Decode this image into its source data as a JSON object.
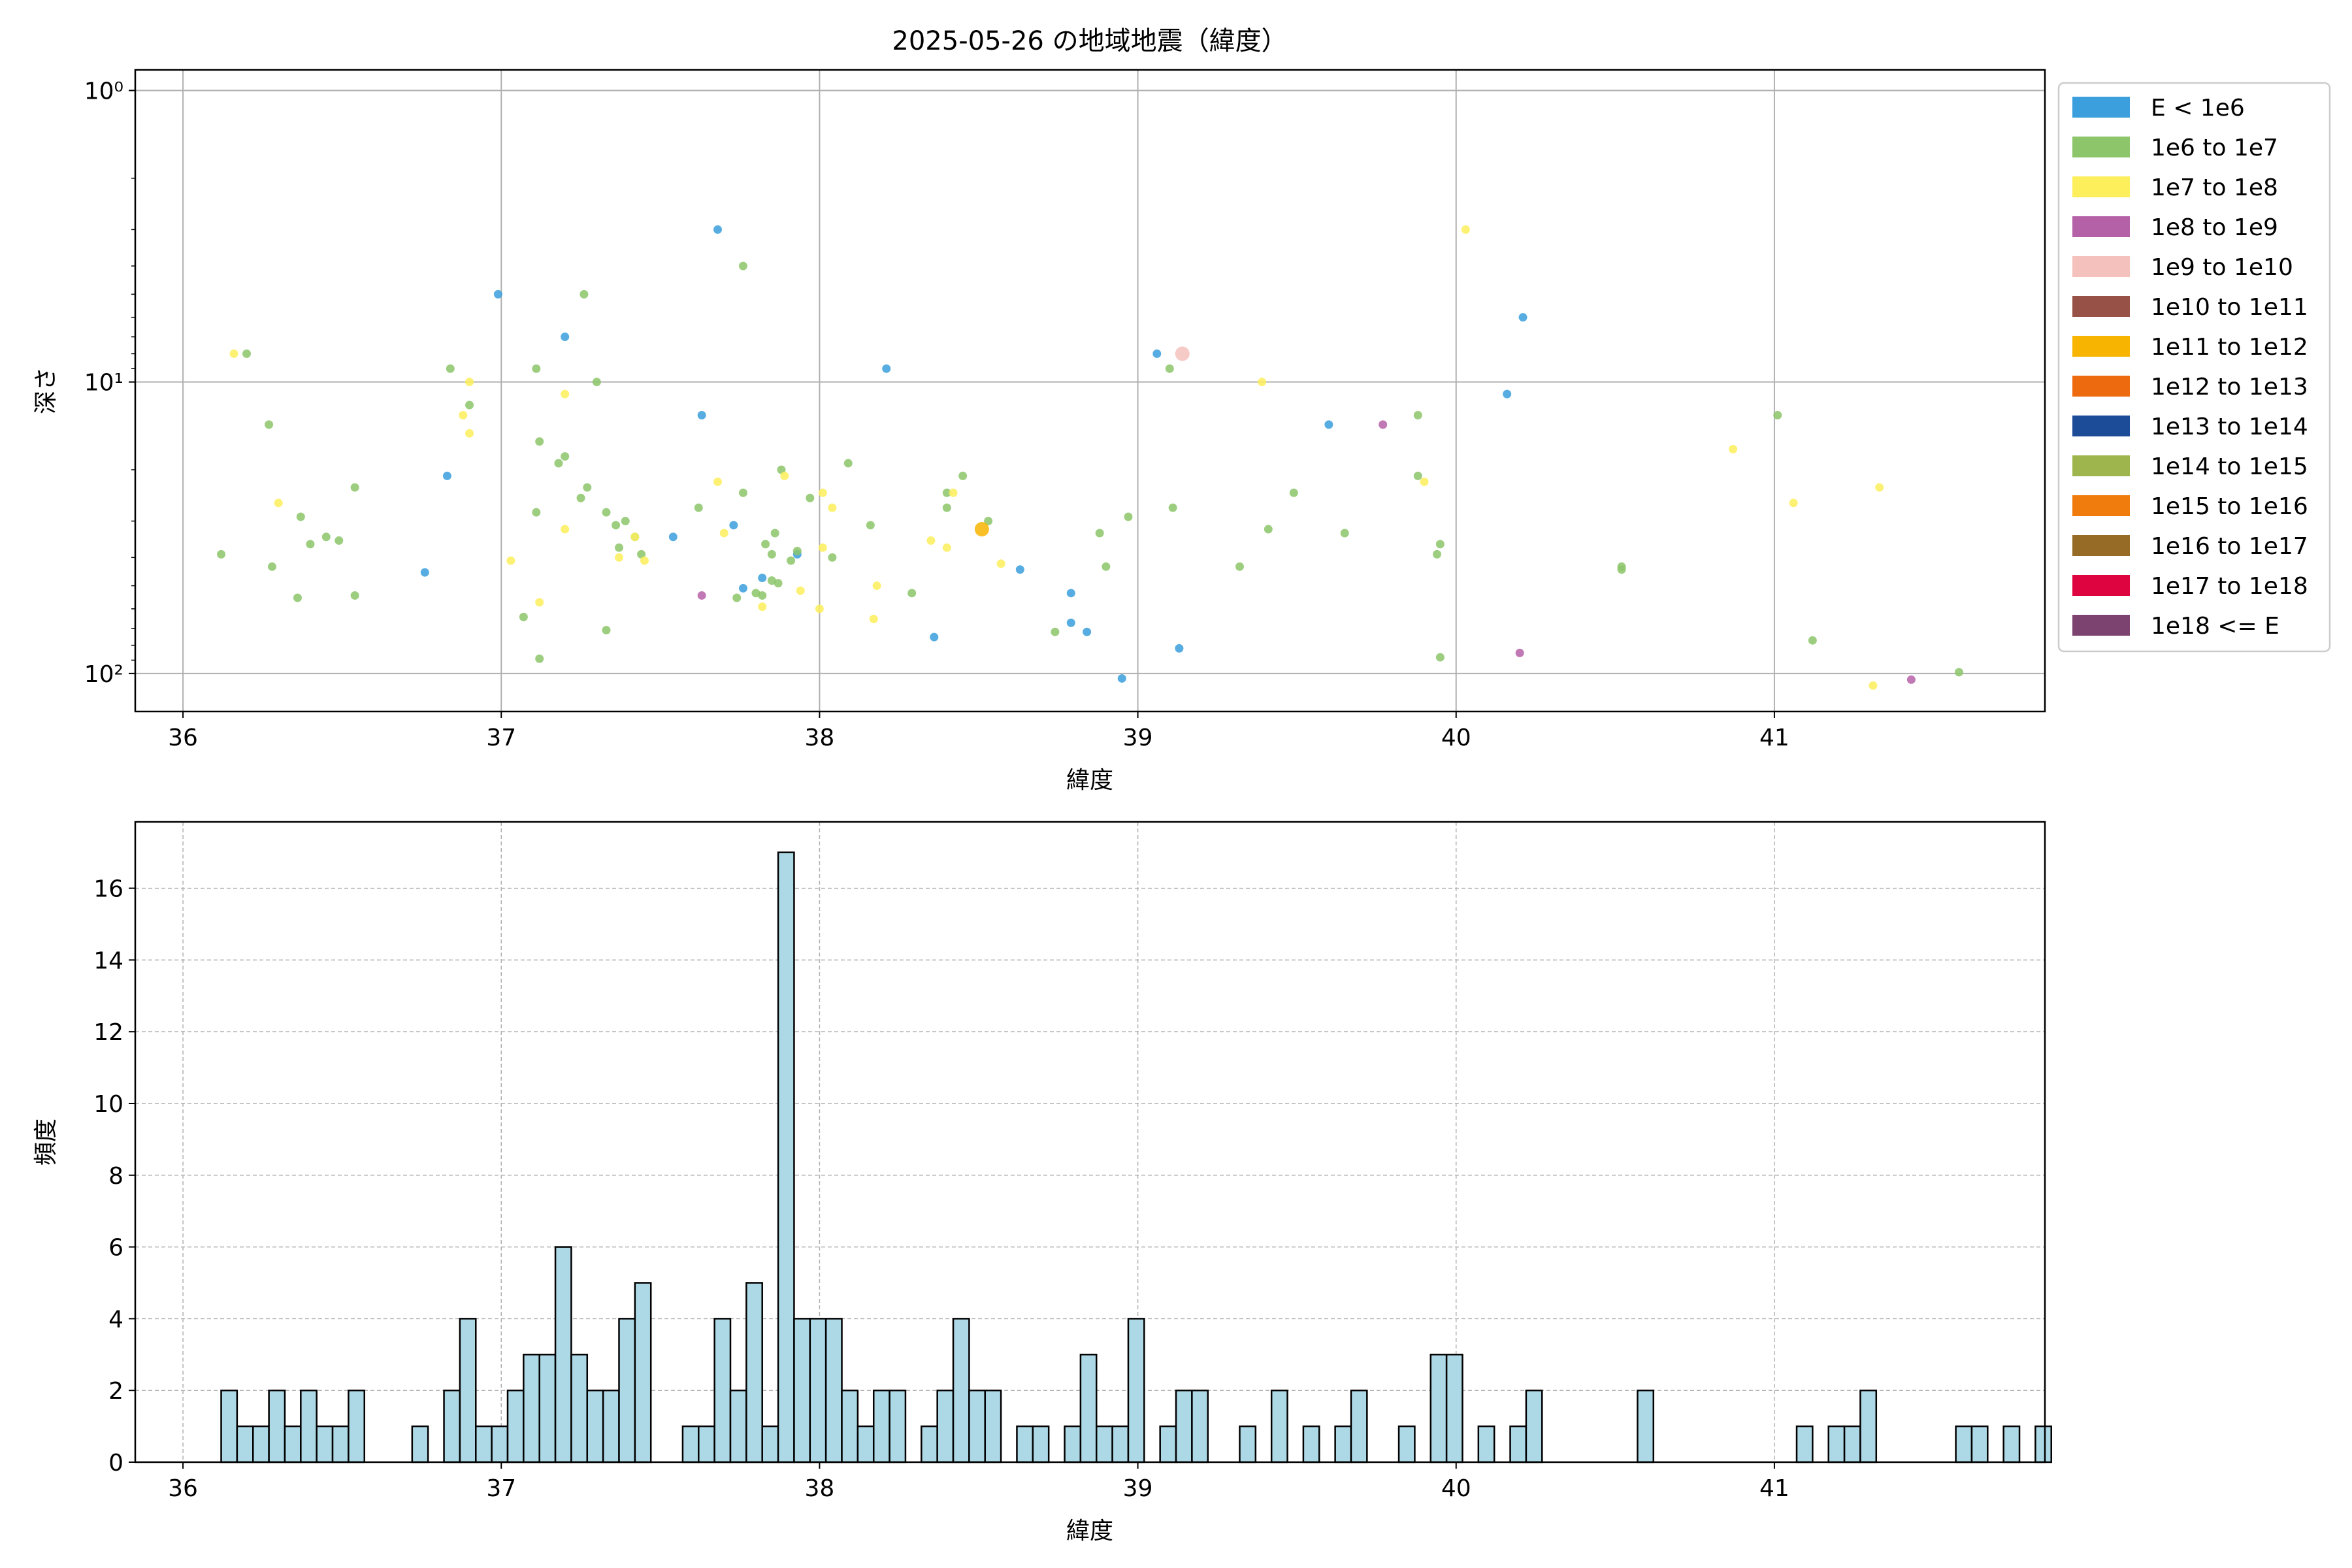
{
  "figure": {
    "title": "2025-05-26 の地域地震（緯度）"
  },
  "chart_data": [
    {
      "type": "scatter",
      "title": "2025-05-26 の地域地震（緯度）",
      "xlabel": "緯度",
      "ylabel": "深さ",
      "xlim": [
        35.85,
        41.85
      ],
      "ylim": [
        135,
        0.85
      ],
      "yscale": "log",
      "y_inverted": true,
      "grid": true,
      "xticks": [
        "36",
        "37",
        "38",
        "39",
        "40",
        "41"
      ],
      "xtick_values": [
        36,
        37,
        38,
        39,
        40,
        41
      ],
      "yticks": [
        "10⁰",
        "10¹",
        "10²"
      ],
      "ytick_values": [
        1,
        10,
        100
      ],
      "legend_position": "outside-right",
      "legend": [
        {
          "label": "E < 1e6",
          "color": "#3a9fdc"
        },
        {
          "label": "1e6 to 1e7",
          "color": "#8cc56a"
        },
        {
          "label": "1e7 to 1e8",
          "color": "#fdee5c"
        },
        {
          "label": "1e8 to 1e9",
          "color": "#b561a8"
        },
        {
          "label": "1e9 to 1e10",
          "color": "#f5c1bc"
        },
        {
          "label": "1e10 to 1e11",
          "color": "#975146"
        },
        {
          "label": "1e11 to 1e12",
          "color": "#f7b400"
        },
        {
          "label": "1e12 to 1e13",
          "color": "#ee6a0e"
        },
        {
          "label": "1e13 to 1e14",
          "color": "#1c4c97"
        },
        {
          "label": "1e14 to 1e15",
          "color": "#9eb54e"
        },
        {
          "label": "1e15 to 1e16",
          "color": "#ef7c0c"
        },
        {
          "label": "1e16 to 1e17",
          "color": "#956b25"
        },
        {
          "label": "1e17 to 1e18",
          "color": "#dd043f"
        },
        {
          "label": "1e18 <= E",
          "color": "#7c4270"
        }
      ],
      "series": [
        {
          "name": "E < 1e6",
          "color": "#3a9fdc",
          "points": [
            [
              36.76,
              45
            ],
            [
              36.83,
              21
            ],
            [
              36.99,
              5
            ],
            [
              37.2,
              7
            ],
            [
              37.54,
              34
            ],
            [
              37.63,
              13
            ],
            [
              37.68,
              3
            ],
            [
              37.73,
              31
            ],
            [
              37.76,
              51
            ],
            [
              37.82,
              47
            ],
            [
              37.93,
              39
            ],
            [
              38.21,
              9
            ],
            [
              38.36,
              75
            ],
            [
              38.63,
              44
            ],
            [
              38.79,
              53
            ],
            [
              38.79,
              67
            ],
            [
              38.84,
              72
            ],
            [
              38.95,
              104
            ],
            [
              39.06,
              8
            ],
            [
              39.13,
              82
            ],
            [
              39.6,
              14
            ],
            [
              40.16,
              11
            ],
            [
              40.21,
              6
            ]
          ]
        },
        {
          "name": "1e6 to 1e7",
          "color": "#8cc56a",
          "points": [
            [
              36.12,
              39
            ],
            [
              36.2,
              8
            ],
            [
              36.27,
              14
            ],
            [
              36.28,
              43
            ],
            [
              36.36,
              55
            ],
            [
              36.37,
              29
            ],
            [
              36.4,
              36
            ],
            [
              36.45,
              34
            ],
            [
              36.49,
              35
            ],
            [
              36.54,
              23
            ],
            [
              36.54,
              54
            ],
            [
              36.84,
              9
            ],
            [
              36.9,
              12
            ],
            [
              37.07,
              64
            ],
            [
              37.11,
              9
            ],
            [
              37.11,
              28
            ],
            [
              37.12,
              89
            ],
            [
              37.12,
              16
            ],
            [
              37.18,
              19
            ],
            [
              37.2,
              18
            ],
            [
              37.25,
              25
            ],
            [
              37.26,
              5
            ],
            [
              37.27,
              23
            ],
            [
              37.3,
              10
            ],
            [
              37.33,
              71
            ],
            [
              37.33,
              28
            ],
            [
              37.36,
              31
            ],
            [
              37.37,
              37
            ],
            [
              37.39,
              30
            ],
            [
              37.42,
              34
            ],
            [
              37.44,
              39
            ],
            [
              37.62,
              27
            ],
            [
              37.74,
              55
            ],
            [
              37.76,
              4
            ],
            [
              37.76,
              24
            ],
            [
              37.8,
              53
            ],
            [
              37.82,
              54
            ],
            [
              37.83,
              36
            ],
            [
              37.85,
              48
            ],
            [
              37.85,
              39
            ],
            [
              37.86,
              33
            ],
            [
              37.87,
              49
            ],
            [
              37.88,
              20
            ],
            [
              37.91,
              41
            ],
            [
              37.93,
              38
            ],
            [
              37.97,
              25
            ],
            [
              38.04,
              40
            ],
            [
              38.09,
              19
            ],
            [
              38.16,
              31
            ],
            [
              38.29,
              53
            ],
            [
              38.4,
              24
            ],
            [
              38.4,
              27
            ],
            [
              38.45,
              21
            ],
            [
              38.53,
              30
            ],
            [
              38.74,
              72
            ],
            [
              38.88,
              33
            ],
            [
              38.9,
              43
            ],
            [
              38.97,
              29
            ],
            [
              39.1,
              9
            ],
            [
              39.11,
              27
            ],
            [
              39.32,
              43
            ],
            [
              39.41,
              32
            ],
            [
              39.49,
              24
            ],
            [
              39.65,
              33
            ],
            [
              39.88,
              21
            ],
            [
              39.88,
              13
            ],
            [
              39.94,
              39
            ],
            [
              39.95,
              36
            ],
            [
              39.95,
              88
            ],
            [
              40.52,
              43
            ],
            [
              40.52,
              44
            ],
            [
              41.01,
              13
            ],
            [
              41.12,
              77
            ],
            [
              41.58,
              99
            ]
          ]
        },
        {
          "name": "1e7 to 1e8",
          "color": "#fdee5c",
          "points": [
            [
              36.16,
              8
            ],
            [
              36.3,
              26
            ],
            [
              36.88,
              13
            ],
            [
              36.9,
              15
            ],
            [
              36.9,
              10
            ],
            [
              37.03,
              41
            ],
            [
              37.12,
              57
            ],
            [
              37.2,
              11
            ],
            [
              37.2,
              32
            ],
            [
              37.37,
              40
            ],
            [
              37.42,
              34
            ],
            [
              37.45,
              41
            ],
            [
              37.68,
              22
            ],
            [
              37.7,
              33
            ],
            [
              37.82,
              59
            ],
            [
              37.89,
              21
            ],
            [
              37.94,
              52
            ],
            [
              38.0,
              60
            ],
            [
              38.01,
              37
            ],
            [
              38.01,
              24
            ],
            [
              38.04,
              27
            ],
            [
              38.17,
              65
            ],
            [
              38.18,
              50
            ],
            [
              38.35,
              35
            ],
            [
              38.4,
              37
            ],
            [
              38.42,
              24
            ],
            [
              38.57,
              42
            ],
            [
              39.39,
              10
            ],
            [
              39.9,
              22
            ],
            [
              40.03,
              3
            ],
            [
              40.87,
              17
            ],
            [
              41.06,
              26
            ],
            [
              41.31,
              110
            ],
            [
              41.33,
              23
            ]
          ]
        },
        {
          "name": "1e8 to 1e9",
          "color": "#b561a8",
          "points": [
            [
              37.63,
              54
            ],
            [
              39.77,
              14
            ],
            [
              40.2,
              85
            ],
            [
              41.43,
              105
            ]
          ]
        },
        {
          "name": "1e9 to 1e10",
          "color": "#f5c1bc",
          "points": [
            [
              39.14,
              8
            ]
          ]
        },
        {
          "name": "1e11 to 1e12",
          "color": "#f7b400",
          "points": [
            [
              38.51,
              32
            ]
          ]
        }
      ]
    },
    {
      "type": "bar",
      "subtype": "histogram",
      "xlabel": "緯度",
      "ylabel": "頻度",
      "xlim": [
        35.85,
        41.85
      ],
      "ylim": [
        0,
        17.85
      ],
      "bin_start": 36.12,
      "bin_width": 0.05,
      "grid": true,
      "xticks": [
        "36",
        "37",
        "38",
        "39",
        "40",
        "41"
      ],
      "xtick_values": [
        36,
        37,
        38,
        39,
        40,
        41
      ],
      "yticks": [
        "0",
        "2",
        "4",
        "6",
        "8",
        "10",
        "12",
        "14",
        "16"
      ],
      "ytick_values": [
        0,
        2,
        4,
        6,
        8,
        10,
        12,
        14,
        16
      ],
      "color": "#add8e6",
      "values": [
        2,
        1,
        1,
        2,
        1,
        2,
        1,
        1,
        2,
        0,
        0,
        0,
        1,
        0,
        2,
        4,
        1,
        1,
        2,
        3,
        3,
        6,
        3,
        2,
        2,
        4,
        5,
        0,
        0,
        1,
        1,
        4,
        2,
        5,
        1,
        17,
        4,
        4,
        4,
        2,
        1,
        2,
        2,
        0,
        1,
        2,
        4,
        2,
        2,
        0,
        1,
        1,
        0,
        1,
        3,
        1,
        1,
        4,
        0,
        1,
        2,
        2,
        0,
        0,
        1,
        0,
        2,
        0,
        1,
        0,
        1,
        2,
        0,
        0,
        1,
        0,
        3,
        3,
        0,
        1,
        0,
        1,
        2,
        0,
        0,
        0,
        0,
        0,
        0,
        2,
        0,
        0,
        0,
        0,
        0,
        0,
        0,
        0,
        0,
        1,
        0,
        1,
        1,
        2,
        0,
        0,
        0,
        0,
        0,
        1,
        1,
        0,
        1,
        0,
        1
      ]
    }
  ]
}
